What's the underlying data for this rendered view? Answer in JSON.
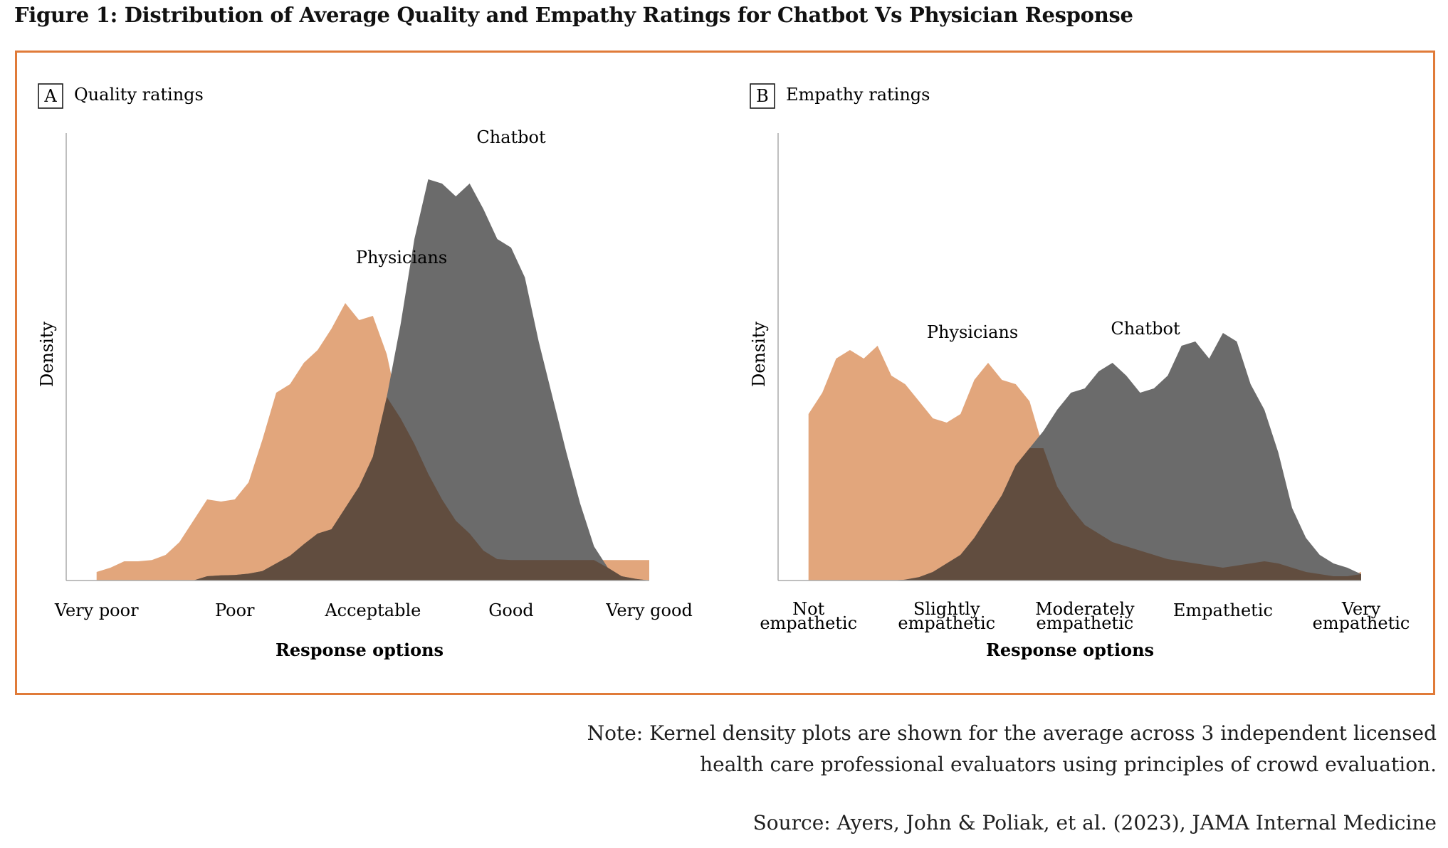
{
  "figure_title": "Figure 1: Distribution of Average Quality and Empathy Ratings for Chatbot Vs Physician Response",
  "note_line1": "Note: Kernel density plots are shown for the average across 3 independent licensed",
  "note_line2": "health care professional evaluators using principles of crowd evaluation.",
  "source": "Source: Ayers, John & Poliak, et al. (2023), JAMA Internal Medicine",
  "colors": {
    "physicians": "#e2a67c",
    "chatbot": "#6b6b6b",
    "overlap": "#614d3f",
    "frame": "#e07b39",
    "axis": "#aaaaaa"
  },
  "chart_data": [
    {
      "type": "area",
      "panel_letter": "A",
      "title": "Quality ratings",
      "xlabel": "Response options",
      "ylabel": "Density",
      "categories": [
        "Very poor",
        "Poor",
        "Acceptable",
        "Good",
        "Very good"
      ],
      "xlim": [
        0.78,
        5.0
      ],
      "ylim": [
        0,
        1.0
      ],
      "series": [
        {
          "name": "Physicians",
          "x": [
            1.0,
            1.1,
            1.2,
            1.3,
            1.4,
            1.5,
            1.6,
            1.7,
            1.8,
            1.9,
            2.0,
            2.1,
            2.2,
            2.3,
            2.4,
            2.5,
            2.6,
            2.7,
            2.8,
            2.9,
            3.0,
            3.1,
            3.2,
            3.3,
            3.4,
            3.5,
            3.6,
            3.7,
            3.8,
            3.9,
            4.0,
            4.1,
            4.2,
            4.3,
            4.4,
            4.5,
            4.6,
            4.7,
            4.8,
            4.9,
            5.0
          ],
          "values": [
            0.02,
            0.03,
            0.045,
            0.045,
            0.048,
            0.06,
            0.09,
            0.14,
            0.19,
            0.185,
            0.19,
            0.23,
            0.33,
            0.44,
            0.46,
            0.51,
            0.54,
            0.59,
            0.65,
            0.61,
            0.62,
            0.53,
            0.38,
            0.32,
            0.25,
            0.19,
            0.14,
            0.11,
            0.07,
            0.05,
            0.048,
            0.048,
            0.048,
            0.048,
            0.048,
            0.048,
            0.048,
            0.048,
            0.048,
            0.048,
            0.048
          ]
        },
        {
          "name": "Chatbot",
          "x": [
            1.0,
            1.1,
            1.2,
            1.3,
            1.4,
            1.5,
            1.6,
            1.7,
            1.8,
            1.9,
            2.0,
            2.1,
            2.2,
            2.3,
            2.4,
            2.5,
            2.6,
            2.7,
            2.8,
            2.9,
            3.0,
            3.1,
            3.2,
            3.3,
            3.4,
            3.5,
            3.6,
            3.7,
            3.8,
            3.9,
            4.0,
            4.1,
            4.2,
            4.3,
            4.4,
            4.5,
            4.6,
            4.7,
            4.8,
            4.9,
            5.0
          ],
          "values": [
            0,
            0,
            0,
            0,
            0,
            0,
            0,
            0,
            0.01,
            0.012,
            0.013,
            0.016,
            0.022,
            0.04,
            0.058,
            0.085,
            0.11,
            0.12,
            0.17,
            0.22,
            0.29,
            0.43,
            0.6,
            0.8,
            0.94,
            0.93,
            0.9,
            0.93,
            0.87,
            0.8,
            0.78,
            0.71,
            0.56,
            0.43,
            0.3,
            0.18,
            0.08,
            0.03,
            0.01,
            0.004,
            0.0
          ]
        }
      ],
      "annotations": [
        "Physicians",
        "Chatbot"
      ]
    },
    {
      "type": "area",
      "panel_letter": "B",
      "title": "Empathy ratings",
      "xlabel": "Response options",
      "ylabel": "Density",
      "categories": [
        "Not empathetic",
        "Slightly empathetic",
        "Moderately empathetic",
        "Empathetic",
        "Very empathetic"
      ],
      "xlim": [
        0.78,
        5.0
      ],
      "ylim": [
        0,
        1.0
      ],
      "series": [
        {
          "name": "Physicians",
          "x": [
            1.0,
            1.1,
            1.2,
            1.3,
            1.4,
            1.5,
            1.6,
            1.7,
            1.8,
            1.9,
            2.0,
            2.1,
            2.2,
            2.3,
            2.4,
            2.5,
            2.6,
            2.7,
            2.8,
            2.9,
            3.0,
            3.1,
            3.2,
            3.3,
            3.4,
            3.5,
            3.6,
            3.7,
            3.8,
            3.9,
            4.0,
            4.1,
            4.2,
            4.3,
            4.4,
            4.5,
            4.6,
            4.7,
            4.8,
            4.9,
            5.0
          ],
          "values": [
            0.39,
            0.44,
            0.52,
            0.54,
            0.52,
            0.55,
            0.48,
            0.46,
            0.42,
            0.38,
            0.37,
            0.39,
            0.47,
            0.51,
            0.47,
            0.46,
            0.42,
            0.31,
            0.22,
            0.17,
            0.13,
            0.11,
            0.09,
            0.08,
            0.07,
            0.06,
            0.05,
            0.045,
            0.04,
            0.035,
            0.03,
            0.035,
            0.04,
            0.045,
            0.04,
            0.03,
            0.02,
            0.015,
            0.01,
            0.01,
            0.02
          ]
        },
        {
          "name": "Chatbot",
          "x": [
            1.0,
            1.1,
            1.2,
            1.3,
            1.4,
            1.5,
            1.6,
            1.7,
            1.8,
            1.9,
            2.0,
            2.1,
            2.2,
            2.3,
            2.4,
            2.5,
            2.6,
            2.7,
            2.8,
            2.9,
            3.0,
            3.1,
            3.2,
            3.3,
            3.4,
            3.5,
            3.6,
            3.7,
            3.8,
            3.9,
            4.0,
            4.1,
            4.2,
            4.3,
            4.4,
            4.5,
            4.6,
            4.7,
            4.8,
            4.9,
            5.0
          ],
          "values": [
            0,
            0,
            0,
            0,
            0,
            0,
            0,
            0.002,
            0.008,
            0.02,
            0.04,
            0.06,
            0.1,
            0.15,
            0.2,
            0.27,
            0.31,
            0.35,
            0.4,
            0.44,
            0.45,
            0.49,
            0.51,
            0.48,
            0.44,
            0.45,
            0.48,
            0.55,
            0.56,
            0.52,
            0.58,
            0.56,
            0.46,
            0.4,
            0.3,
            0.17,
            0.1,
            0.06,
            0.04,
            0.03,
            0.015
          ]
        }
      ],
      "annotations": [
        "Physicians",
        "Chatbot"
      ]
    }
  ]
}
